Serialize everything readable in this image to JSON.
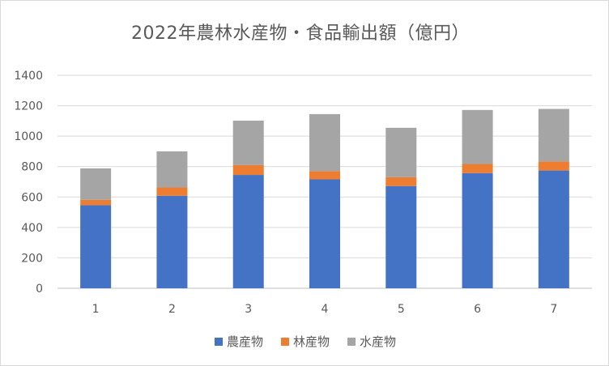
{
  "chart_data": {
    "type": "bar",
    "stacked": true,
    "title": "2022年農林水産物・食品輸出額（億円）",
    "xlabel": "",
    "ylabel": "",
    "categories": [
      "1",
      "2",
      "3",
      "4",
      "5",
      "6",
      "7"
    ],
    "series": [
      {
        "name": "農産物",
        "color": "#4472C4",
        "values": [
          546,
          608,
          745,
          716,
          672,
          757,
          774
        ]
      },
      {
        "name": "林産物",
        "color": "#ED7D31",
        "values": [
          35,
          55,
          65,
          54,
          58,
          60,
          60
        ]
      },
      {
        "name": "水産物",
        "color": "#A5A5A5",
        "values": [
          207,
          237,
          292,
          375,
          325,
          355,
          345
        ]
      }
    ],
    "ylim": [
      0,
      1400
    ],
    "yticks": [
      0,
      200,
      400,
      600,
      800,
      1000,
      1200,
      1400
    ],
    "grid": true,
    "legend_position": "bottom"
  }
}
